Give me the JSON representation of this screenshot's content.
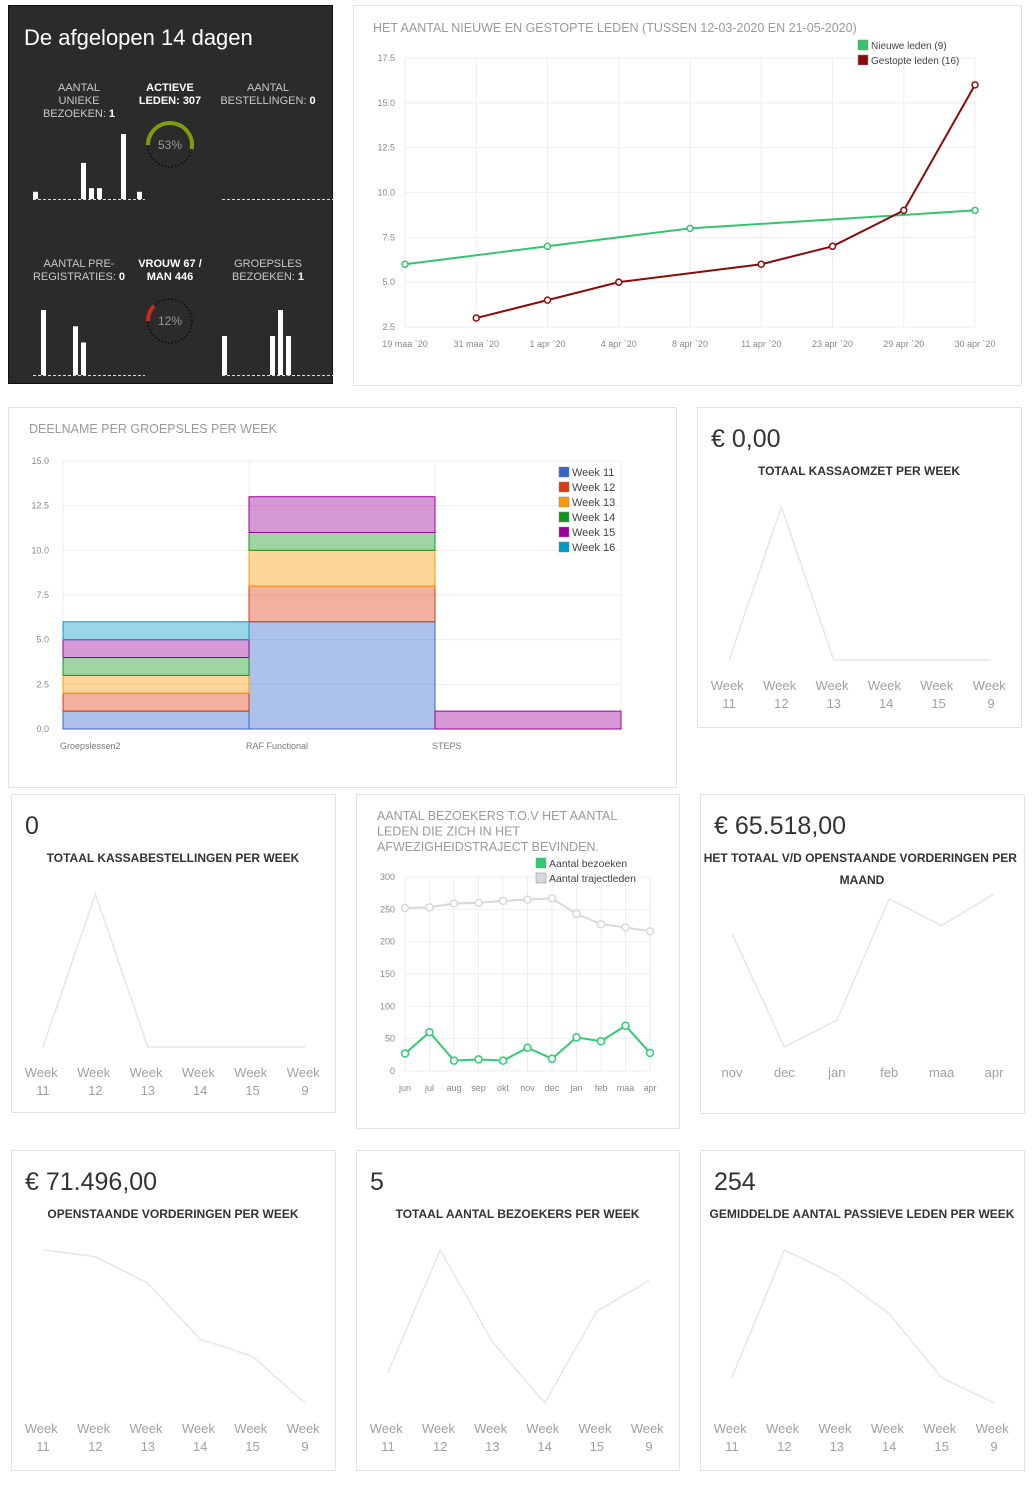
{
  "summary": {
    "title": "De afgelopen 14 dagen",
    "stats": [
      {
        "label": [
          "AANTAL",
          "UNIEKE",
          "BEZOEKEN:"
        ],
        "value": 1,
        "bars": [
          1,
          0,
          0,
          0,
          0,
          0,
          5,
          1.5,
          1.5,
          0,
          0,
          9,
          0,
          1
        ]
      },
      {
        "label": [
          "ACTIEVE",
          "LEDEN: 307"
        ],
        "gauge": 53,
        "gauge_label": "53%",
        "gauge_color": "#7f9c0a"
      },
      {
        "label": [
          "AANTAL",
          "BESTELLINGEN:"
        ],
        "value": 0,
        "bars": [
          0,
          0,
          0,
          0,
          0,
          0,
          0,
          0,
          0,
          0,
          0,
          0,
          0,
          0
        ]
      },
      {
        "label": [
          "AANTAL PRE-",
          "REGISTRATIES:"
        ],
        "value": 0,
        "bars": [
          0,
          4,
          0,
          0,
          0,
          3,
          2,
          0,
          0,
          0,
          0,
          0,
          0,
          0
        ]
      },
      {
        "label": [
          "VROUW 67 /",
          "MAN 446"
        ],
        "gauge": 12,
        "gauge_label": "12%",
        "gauge_color": "#d0281c"
      },
      {
        "label": [
          "GROEPSLES",
          "BEZOEKEN:"
        ],
        "value": 1,
        "bars": [
          6,
          0,
          0,
          0,
          0,
          0,
          6,
          10,
          6,
          0,
          0,
          0,
          0,
          0
        ]
      }
    ]
  },
  "members_chart": {
    "type": "line",
    "title": "HET AANTAL NIEUWE EN GESTOPTE LEDEN (TUSSEN 12-03-2020 EN 21-05-2020)",
    "categories": [
      "19 maa `20",
      "31 maa `20",
      "1 apr `20",
      "4 apr `20",
      "8 apr `20",
      "11 apr `20",
      "23 apr `20",
      "29 apr `20",
      "30 apr `20"
    ],
    "series": [
      {
        "name": "Nieuwe leden (9)",
        "color": "#34c46c",
        "values": [
          6,
          null,
          7,
          null,
          8,
          null,
          null,
          null,
          9
        ]
      },
      {
        "name": "Gestopte leden (16)",
        "color": "#8b0a0a",
        "values": [
          null,
          3,
          4,
          5,
          null,
          6,
          7,
          9,
          16
        ]
      }
    ],
    "ylim": [
      2.5,
      17.5
    ],
    "yticks": [
      2.5,
      {
        "value": 5,
        "label": "5.0"
      },
      7.5,
      {
        "value": 10,
        "label": "10.0"
      },
      12.5,
      {
        "value": 15,
        "label": "15.0"
      },
      17.5
    ],
    "grid": true,
    "span_gaps": true,
    "legend": "top-right"
  },
  "group_chart": {
    "type": "bar",
    "stacked": true,
    "title": "DEELNAME PER GROEPSLES PER WEEK",
    "categories": [
      "Groepslessen2",
      "RAF Functional",
      "STEPS"
    ],
    "series": [
      {
        "name": "Week 11",
        "color": "#3366cc",
        "values": [
          1,
          6,
          0
        ]
      },
      {
        "name": "Week 12",
        "color": "#dc3912",
        "values": [
          1,
          2,
          0
        ]
      },
      {
        "name": "Week 13",
        "color": "#ff9900",
        "values": [
          1,
          2,
          0
        ]
      },
      {
        "name": "Week 14",
        "color": "#109618",
        "values": [
          1,
          1,
          0
        ]
      },
      {
        "name": "Week 15",
        "color": "#990099",
        "values": [
          1,
          2,
          1
        ]
      },
      {
        "name": "Week 16",
        "color": "#0099c6",
        "values": [
          1,
          0,
          0
        ]
      }
    ],
    "ylim": [
      0,
      15
    ],
    "yticks": [
      {
        "value": 0,
        "label": "0.0"
      },
      2.5,
      {
        "value": 5,
        "label": "5.0"
      },
      7.5,
      {
        "value": 10,
        "label": "10.0"
      },
      12.5,
      {
        "value": 15,
        "label": "15.0"
      }
    ],
    "grid": true,
    "legend": "top-right"
  },
  "absence_chart": {
    "type": "line",
    "title": "AANTAL BEZOEKERS T.O.V HET AANTAL LEDEN DIE ZICH IN HET AFWEZIGHEIDSTRAJECT BEVINDEN.",
    "categories": [
      "jun",
      "jul",
      "aug",
      "sep",
      "okt",
      "nov",
      "dec",
      "jan",
      "feb",
      "maa",
      "apr"
    ],
    "series": [
      {
        "name": "Aantal bezoeken",
        "color": "#2ecc71",
        "values": [
          27,
          60,
          16,
          18,
          16,
          36,
          19,
          52,
          46,
          70,
          28
        ]
      },
      {
        "name": "Aantal trajectleden",
        "color": "#d5d8dc",
        "values": [
          252,
          253,
          259,
          260,
          263,
          265,
          267,
          243,
          227,
          222,
          216
        ]
      }
    ],
    "ylim": [
      0,
      300
    ],
    "yticks": [
      0,
      50,
      100,
      150,
      200,
      250,
      300
    ],
    "grid": true,
    "span_gaps": false,
    "legend": "top-right"
  },
  "cards": [
    {
      "value": "€ 0,00",
      "title": "TOTAAL KASSAOMZET PER WEEK",
      "categories": [
        "Week 11",
        "Week 12",
        "Week 13",
        "Week 14",
        "Week 15",
        "Week 9"
      ],
      "values": [
        0,
        1,
        0,
        0,
        0,
        0
      ]
    },
    {
      "value": "0",
      "title": "TOTAAL KASSABESTELLINGEN PER WEEK",
      "categories": [
        "Week 11",
        "Week 12",
        "Week 13",
        "Week 14",
        "Week 15",
        "Week 9"
      ],
      "values": [
        0,
        1,
        0,
        0,
        0,
        0
      ]
    },
    {
      "value": "€ 65.518,00",
      "title": "HET TOTAAL V/D OPENSTAANDE VORDERINGEN PER MAAND",
      "categories": [
        "nov",
        "dec",
        "jan",
        "feb",
        "maa",
        "apr"
      ],
      "values": [
        80,
        8,
        25,
        102,
        85,
        105
      ]
    },
    {
      "value": "€ 71.496,00",
      "title": "OPENSTAANDE VORDERINGEN PER WEEK",
      "categories": [
        "Week 11",
        "Week 12",
        "Week 13",
        "Week 14",
        "Week 15",
        "Week 9"
      ],
      "values": [
        145,
        140,
        120,
        78,
        65,
        30
      ]
    },
    {
      "value": "5",
      "title": "TOTAAL AANTAL BEZOEKERS PER WEEK",
      "categories": [
        "Week 11",
        "Week 12",
        "Week 13",
        "Week 14",
        "Week 15",
        "Week 9"
      ],
      "values": [
        1,
        5,
        2,
        0,
        3,
        4
      ]
    },
    {
      "value": "254",
      "title": "GEMIDDELDE AANTAL PASSIEVE LEDEN PER WEEK",
      "categories": [
        "Week 11",
        "Week 12",
        "Week 13",
        "Week 14",
        "Week 15",
        "Week 9"
      ],
      "values": [
        1,
        6,
        5,
        3.5,
        1,
        0
      ]
    }
  ]
}
